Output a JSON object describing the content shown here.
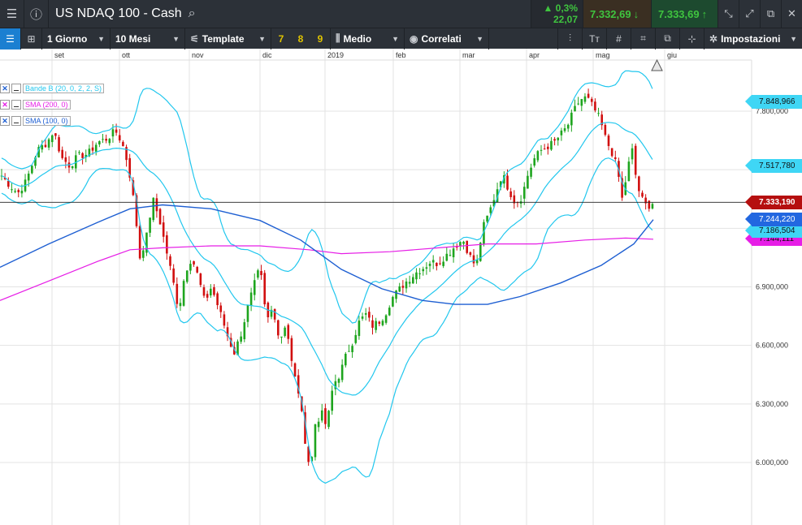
{
  "header": {
    "menu_icon": "hamburger-icon",
    "info_icon": "info-circle-icon",
    "title": "US NDAQ 100 - Cash",
    "search_icon": "search-icon",
    "change_pct": "▲ 0,3%",
    "change_abs": "22,07",
    "sell_price": "7.332,69",
    "sell_arrow": "↓",
    "buy_price": "7.333,69",
    "buy_arrow": "↑",
    "colors": {
      "up": "#3fc43f",
      "bar_bg": "#2c3138"
    }
  },
  "toolbar": {
    "timeframe": "1 Giorno",
    "period": "10 Mesi",
    "template": "Template",
    "presets": [
      "7",
      "8",
      "9"
    ],
    "price_type": "Medio",
    "correlated": "Correlati",
    "settings": "Impostazioni",
    "text_tool": "Tᴛ"
  },
  "chart_data": {
    "type": "line",
    "title": "US NDAQ 100 - Cash",
    "xlabel": "",
    "ylabel": "",
    "x_ticks": [
      "set",
      "ott",
      "nov",
      "dic",
      "2019",
      "feb",
      "mar",
      "apr",
      "mag",
      "giu"
    ],
    "y_ticks": [
      "7.800,000",
      "6.900,000",
      "6.600,000",
      "6.300,000",
      "6.000,000"
    ],
    "ylim": [
      5850,
      7980
    ],
    "grid": true,
    "series": [
      {
        "name": "Bande B (20, 0, 2, 2, S)",
        "color": "#22c7ee"
      },
      {
        "name": "SMA (200, 0)",
        "color": "#e61ee6"
      },
      {
        "name": "SMA (100, 0)",
        "color": "#1e5fd2"
      }
    ],
    "price_tags": [
      {
        "value": 7848.966,
        "label": "7.848,966",
        "color": "#3fd6f5"
      },
      {
        "value": 7517.78,
        "label": "7.517,780",
        "color": "#3fd6f5"
      },
      {
        "value": 7333.19,
        "label": "7.333,190",
        "color": "#b50f0f"
      },
      {
        "value": 7244.22,
        "label": "7.244,220",
        "color": "#2267e0"
      },
      {
        "value": 7186.504,
        "label": "7.186,504",
        "color": "#3fd6f5"
      },
      {
        "value": 7144.111,
        "label": "7.144,111",
        "color": "#e61ee6"
      }
    ],
    "current_price": 7333.19
  }
}
